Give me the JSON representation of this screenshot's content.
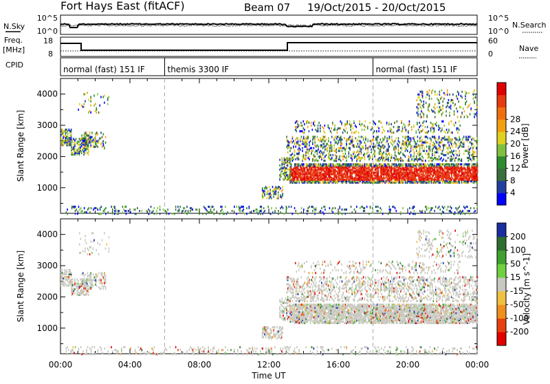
{
  "header": {
    "station": "Fort Hays East (fitACF)",
    "beam": "Beam 07",
    "date_range": "19/Oct/2015 - 20/Oct/2015"
  },
  "strips": {
    "nsky_label": "N.Sky",
    "nsky_ticks": [
      "10^5",
      "10^0"
    ],
    "nsearch_label": "N.Search",
    "nsearch_ticks": [
      "10^5",
      "10^0"
    ],
    "freq_label": "Freq.",
    "freq_unit": "[MHz]",
    "freq_ticks": [
      "18",
      "8"
    ],
    "nave_label": "Nave",
    "nave_ticks": [
      "60",
      "0"
    ],
    "cpid_label": "CPID"
  },
  "cpid_segments": [
    {
      "label": "normal (fast) 151 IF",
      "start": 0
    },
    {
      "label": "themis 3300 IF",
      "start": 6
    },
    {
      "label": "normal (fast) 151 IF",
      "start": 18
    }
  ],
  "chart_data": [
    {
      "type": "heatmap",
      "name": "power",
      "ylabel": "Slant Range [km]",
      "yticks": [
        "1000",
        "2000",
        "3000",
        "4000"
      ],
      "ylim": [
        180,
        4500
      ],
      "xlim": [
        0,
        24
      ],
      "colorbar_label": "Power [dB]",
      "colorbar_ticks": [
        "4",
        "8",
        "12",
        "16",
        "20",
        "24",
        "28"
      ],
      "colorbar_colors": [
        "#0000ff",
        "#2040a0",
        "#3a6e3a",
        "#2e8b2e",
        "#80c040",
        "#e0d020",
        "#f0a010",
        "#f07010",
        "#e83a10",
        "#e00000"
      ]
    },
    {
      "type": "heatmap",
      "name": "velocity",
      "ylabel": "Slant Range [km]",
      "yticks": [
        "1000",
        "2000",
        "3000",
        "4000"
      ],
      "ylim": [
        180,
        4500
      ],
      "xlim": [
        0,
        24
      ],
      "xlabel": "Time UT",
      "xticks": [
        "00:00",
        "04:00",
        "08:00",
        "12:00",
        "16:00",
        "20:00",
        "00:00"
      ],
      "colorbar_label": "Velocity [m s^-1]",
      "colorbar_ticks": [
        "200",
        "100",
        "50",
        "15",
        "-15",
        "-50",
        "-100",
        "-200"
      ],
      "colorbar_colors": [
        "#1a2ea0",
        "#2e6e2e",
        "#40a030",
        "#70d040",
        "#c8c8c0",
        "#f0c040",
        "#f09020",
        "#e84010",
        "#e00000"
      ]
    }
  ]
}
